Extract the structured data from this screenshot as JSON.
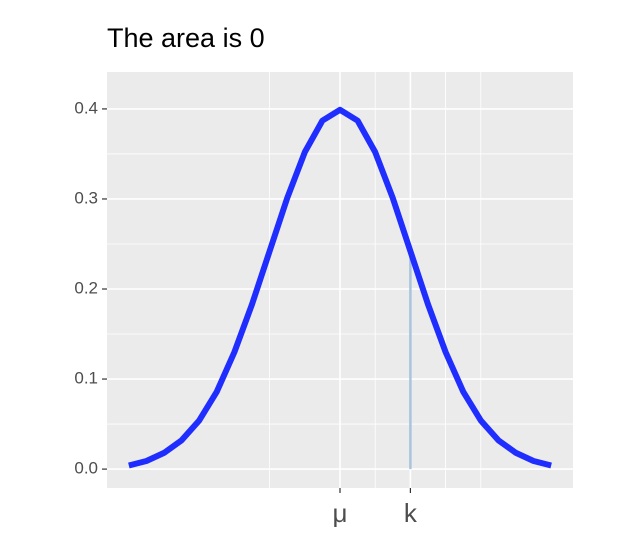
{
  "chart_data": {
    "type": "line",
    "title": "The area is 0",
    "x": [
      -3,
      -2.75,
      -2.5,
      -2.25,
      -2,
      -1.75,
      -1.5,
      -1.25,
      -1,
      -0.75,
      -0.5,
      -0.25,
      0,
      0.25,
      0.5,
      0.75,
      1,
      1.25,
      1.5,
      1.75,
      2,
      2.25,
      2.5,
      2.75,
      3
    ],
    "series": [
      {
        "color": "#1f2eff",
        "values": [
          0.004,
          0.009,
          0.018,
          0.032,
          0.054,
          0.086,
          0.13,
          0.183,
          0.242,
          0.301,
          0.352,
          0.387,
          0.399,
          0.387,
          0.352,
          0.301,
          0.242,
          0.183,
          0.13,
          0.086,
          0.054,
          0.032,
          0.018,
          0.009,
          0.004
        ]
      }
    ],
    "k_segment": {
      "x": 1,
      "y": [
        0,
        0.242
      ],
      "color": "#a9c4dc"
    },
    "xlim": [
      -3.31,
      3.31
    ],
    "ylim": [
      -0.021,
      0.441
    ],
    "xticks": [
      {
        "value": 0,
        "label": "μ"
      },
      {
        "value": 1,
        "label": "k"
      }
    ],
    "yticks": [
      {
        "value": 0,
        "label": "0.0"
      },
      0.1,
      0.2,
      0.3,
      0.4
    ],
    "x_minor_grid": [
      -1,
      0.5,
      1.5,
      2
    ],
    "y_minor_grid": [
      0.05,
      0.15,
      0.25,
      0.35
    ],
    "grid": true
  }
}
